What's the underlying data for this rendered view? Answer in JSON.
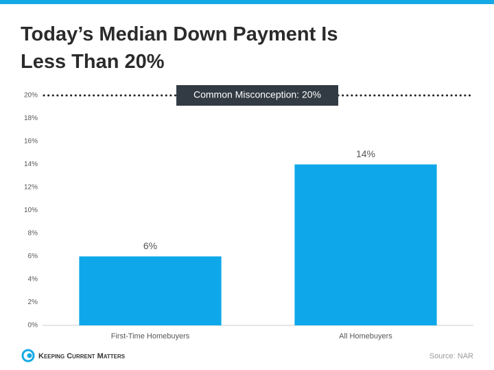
{
  "chart_data": {
    "type": "bar",
    "title": "Today’s Median Down Payment Is Less Than 20%",
    "categories": [
      "First-Time Homebuyers",
      "All Homebuyers"
    ],
    "values": [
      6,
      14
    ],
    "value_labels": [
      "6%",
      "14%"
    ],
    "color": "#0ea8ea",
    "ylim": [
      0,
      20
    ],
    "yticks": [
      {
        "value": 0,
        "label": "0%"
      },
      {
        "value": 2,
        "label": "2%"
      },
      {
        "value": 4,
        "label": "4%"
      },
      {
        "value": 6,
        "label": "6%"
      },
      {
        "value": 8,
        "label": "8%"
      },
      {
        "value": 10,
        "label": "10%"
      },
      {
        "value": 12,
        "label": "12%"
      },
      {
        "value": 14,
        "label": "14%"
      },
      {
        "value": 16,
        "label": "16%"
      },
      {
        "value": 18,
        "label": "18%"
      },
      {
        "value": 20,
        "label": "20%"
      }
    ],
    "grid": false,
    "reference_line": {
      "value": 20,
      "label": "Common Misconception: 20%"
    },
    "source": "Source: NAR"
  },
  "footer": {
    "logo": "Keeping Current Matters"
  }
}
